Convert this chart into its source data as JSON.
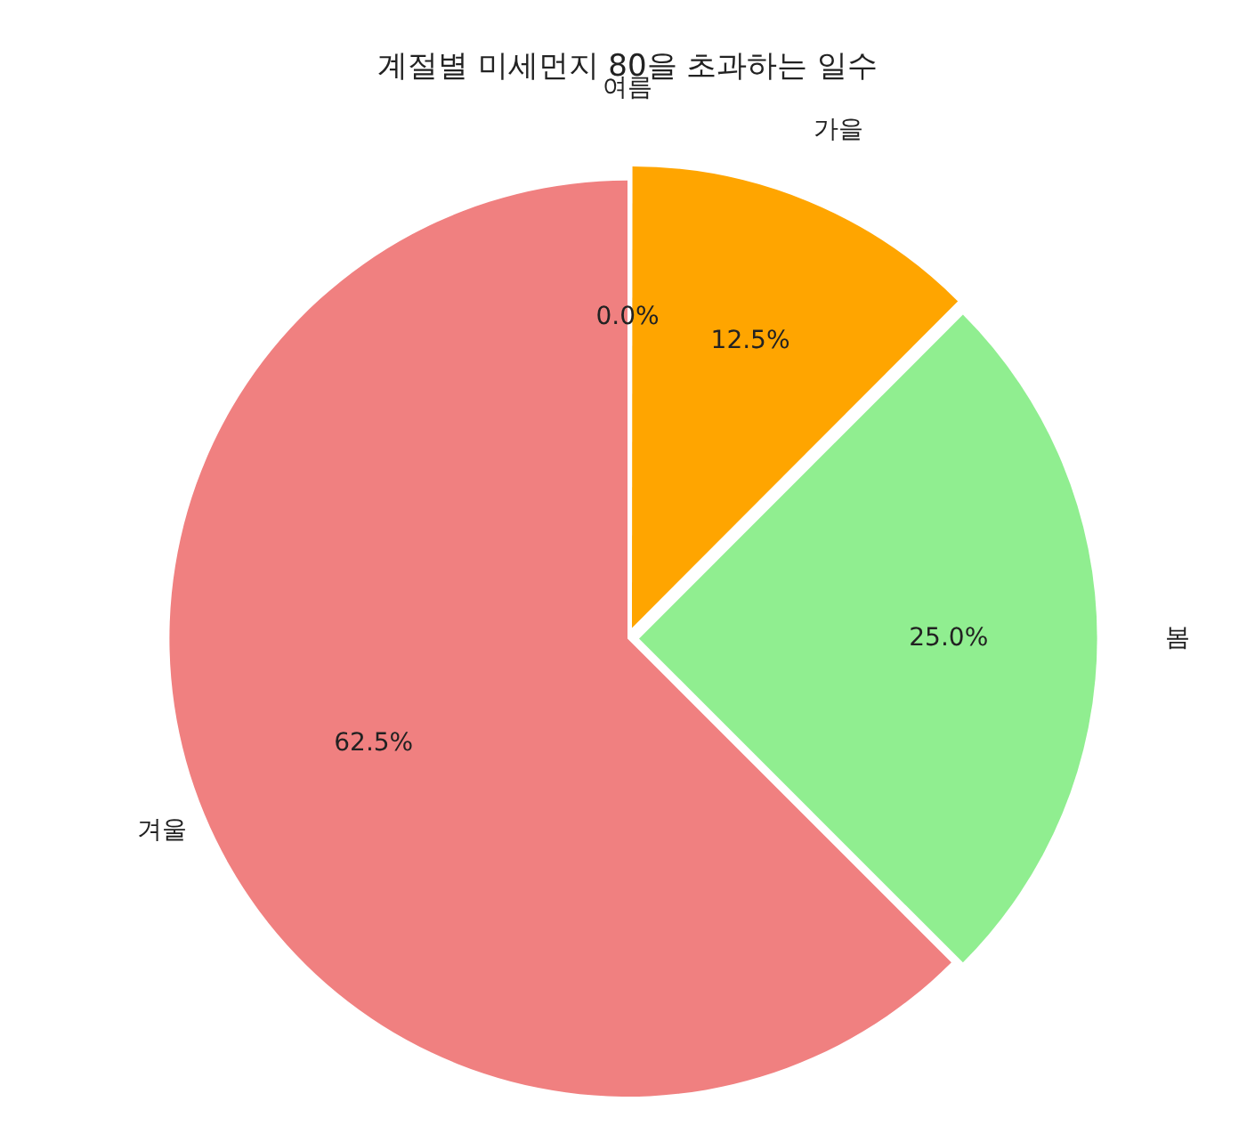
{
  "chart_data": {
    "type": "pie",
    "title": "계절별 미세먼지 80을 초과하는 일수",
    "categories": [
      "여름",
      "가을",
      "봄",
      "겨울"
    ],
    "values": [
      0,
      12.5,
      25,
      62.5
    ],
    "colors": [
      "#87ceeb",
      "#ffa500",
      "#90ee90",
      "#f08080"
    ],
    "value_labels": [
      "0.0%",
      "12.5%",
      "25.0%",
      "62.5%"
    ],
    "legend": false
  }
}
